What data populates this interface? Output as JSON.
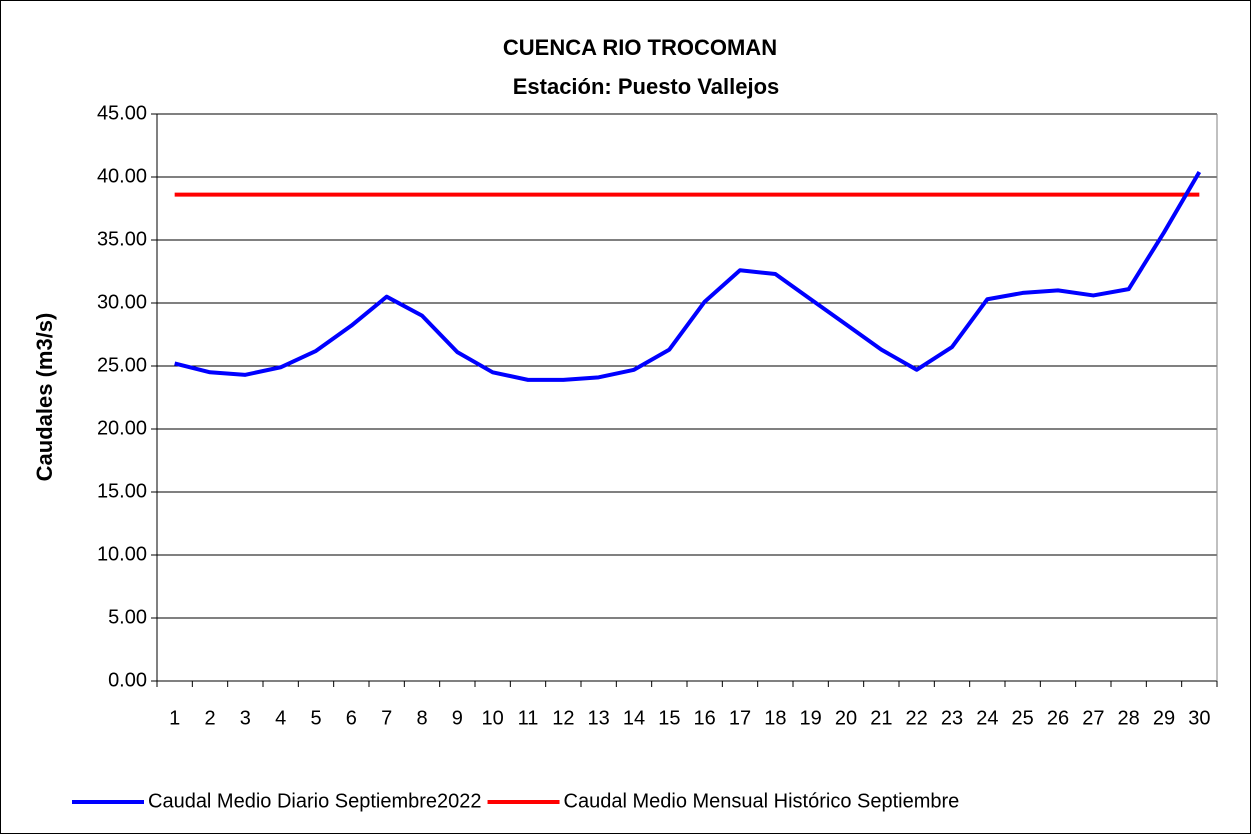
{
  "chart_data": {
    "type": "line",
    "title": "CUENCA RIO TROCOMAN",
    "subtitle": "Estación: Puesto Vallejos",
    "y_label": "Caudales (m3/s)",
    "categories": [
      "1",
      "2",
      "3",
      "4",
      "5",
      "6",
      "7",
      "8",
      "9",
      "10",
      "11",
      "12",
      "13",
      "14",
      "15",
      "16",
      "17",
      "18",
      "19",
      "20",
      "21",
      "22",
      "23",
      "24",
      "25",
      "26",
      "27",
      "28",
      "29",
      "30"
    ],
    "series": [
      {
        "name": "Caudal Medio Diario Septiembre2022",
        "color": "#0000ff",
        "values": [
          25.2,
          24.5,
          24.3,
          24.9,
          26.2,
          28.2,
          30.5,
          29.0,
          26.1,
          24.5,
          23.9,
          23.9,
          24.1,
          24.7,
          26.3,
          30.1,
          32.6,
          32.3,
          30.3,
          28.3,
          26.3,
          24.7,
          26.5,
          30.3,
          30.8,
          31.0,
          30.6,
          31.1,
          35.6,
          40.4
        ]
      },
      {
        "name": "Caudal Medio Mensual Histórico Septiembre",
        "color": "#ff0000",
        "values": [
          38.6,
          38.6,
          38.6,
          38.6,
          38.6,
          38.6,
          38.6,
          38.6,
          38.6,
          38.6,
          38.6,
          38.6,
          38.6,
          38.6,
          38.6,
          38.6,
          38.6,
          38.6,
          38.6,
          38.6,
          38.6,
          38.6,
          38.6,
          38.6,
          38.6,
          38.6,
          38.6,
          38.6,
          38.6,
          38.6
        ]
      }
    ],
    "ylim": [
      0,
      45
    ],
    "yticks": [
      {
        "value": 0,
        "label": "0.00"
      },
      {
        "value": 5,
        "label": "5.00"
      },
      {
        "value": 10,
        "label": "10.00"
      },
      {
        "value": 15,
        "label": "15.00"
      },
      {
        "value": 20,
        "label": "20.00"
      },
      {
        "value": 25,
        "label": "25.00"
      },
      {
        "value": 30,
        "label": "30.00"
      },
      {
        "value": 35,
        "label": "35.00"
      },
      {
        "value": 40,
        "label": "40.00"
      },
      {
        "value": 45,
        "label": "45.00"
      }
    ],
    "grid": true,
    "legend": "bottom"
  }
}
